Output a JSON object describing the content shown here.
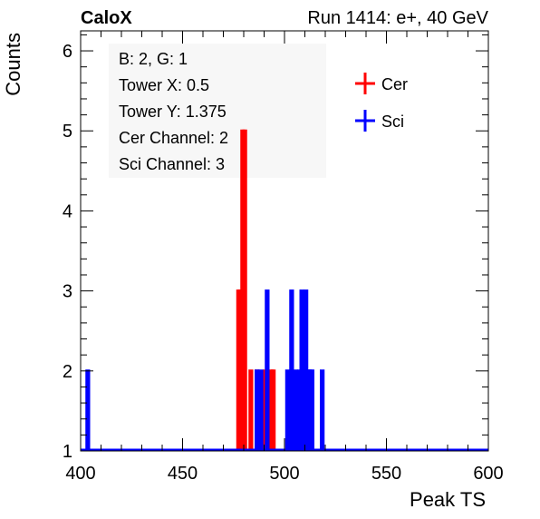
{
  "header": {
    "left": "CaloX",
    "right": "Run 1414: e+, 40 GeV"
  },
  "info_box": {
    "lines": [
      "B: 2, G: 1",
      "Tower X: 0.5",
      "Tower Y: 1.375",
      "Cer Channel: 2",
      "Sci Channel: 3"
    ]
  },
  "colors": {
    "cer": "#ff0000",
    "sci": "#0000ff",
    "axis": "#000000",
    "info_box_bg": "#f7f7f7"
  },
  "chart_data": {
    "type": "histogram",
    "title": "",
    "xlabel": "Peak TS",
    "ylabel": "Counts",
    "xlim": [
      400,
      600
    ],
    "ylim": [
      1,
      6.25
    ],
    "xticks": [
      400,
      450,
      500,
      550,
      600
    ],
    "yticks": [
      1,
      2,
      3,
      4,
      5,
      6
    ],
    "grid": false,
    "legend_position": "top-right",
    "series": [
      {
        "name": "Cer",
        "color": "#ff0000",
        "bins": [
          {
            "x": 477,
            "count": 3
          },
          {
            "x": 478,
            "count": 3
          },
          {
            "x": 479,
            "count": 5
          },
          {
            "x": 480,
            "count": 5
          },
          {
            "x": 483,
            "count": 2
          },
          {
            "x": 486,
            "count": 2
          },
          {
            "x": 490,
            "count": 2
          },
          {
            "x": 493,
            "count": 2
          },
          {
            "x": 494,
            "count": 2
          }
        ]
      },
      {
        "name": "Sci",
        "color": "#0000ff",
        "bins": [
          {
            "x": 403,
            "count": 2
          },
          {
            "x": 486,
            "count": 2
          },
          {
            "x": 488,
            "count": 2
          },
          {
            "x": 491,
            "count": 3
          },
          {
            "x": 501,
            "count": 2
          },
          {
            "x": 503,
            "count": 3
          },
          {
            "x": 505,
            "count": 2
          },
          {
            "x": 507,
            "count": 2
          },
          {
            "x": 508,
            "count": 3
          },
          {
            "x": 509,
            "count": 2
          },
          {
            "x": 510,
            "count": 3
          },
          {
            "x": 511,
            "count": 2
          },
          {
            "x": 512,
            "count": 2
          },
          {
            "x": 513,
            "count": 2
          },
          {
            "x": 518,
            "count": 2
          }
        ]
      }
    ]
  }
}
